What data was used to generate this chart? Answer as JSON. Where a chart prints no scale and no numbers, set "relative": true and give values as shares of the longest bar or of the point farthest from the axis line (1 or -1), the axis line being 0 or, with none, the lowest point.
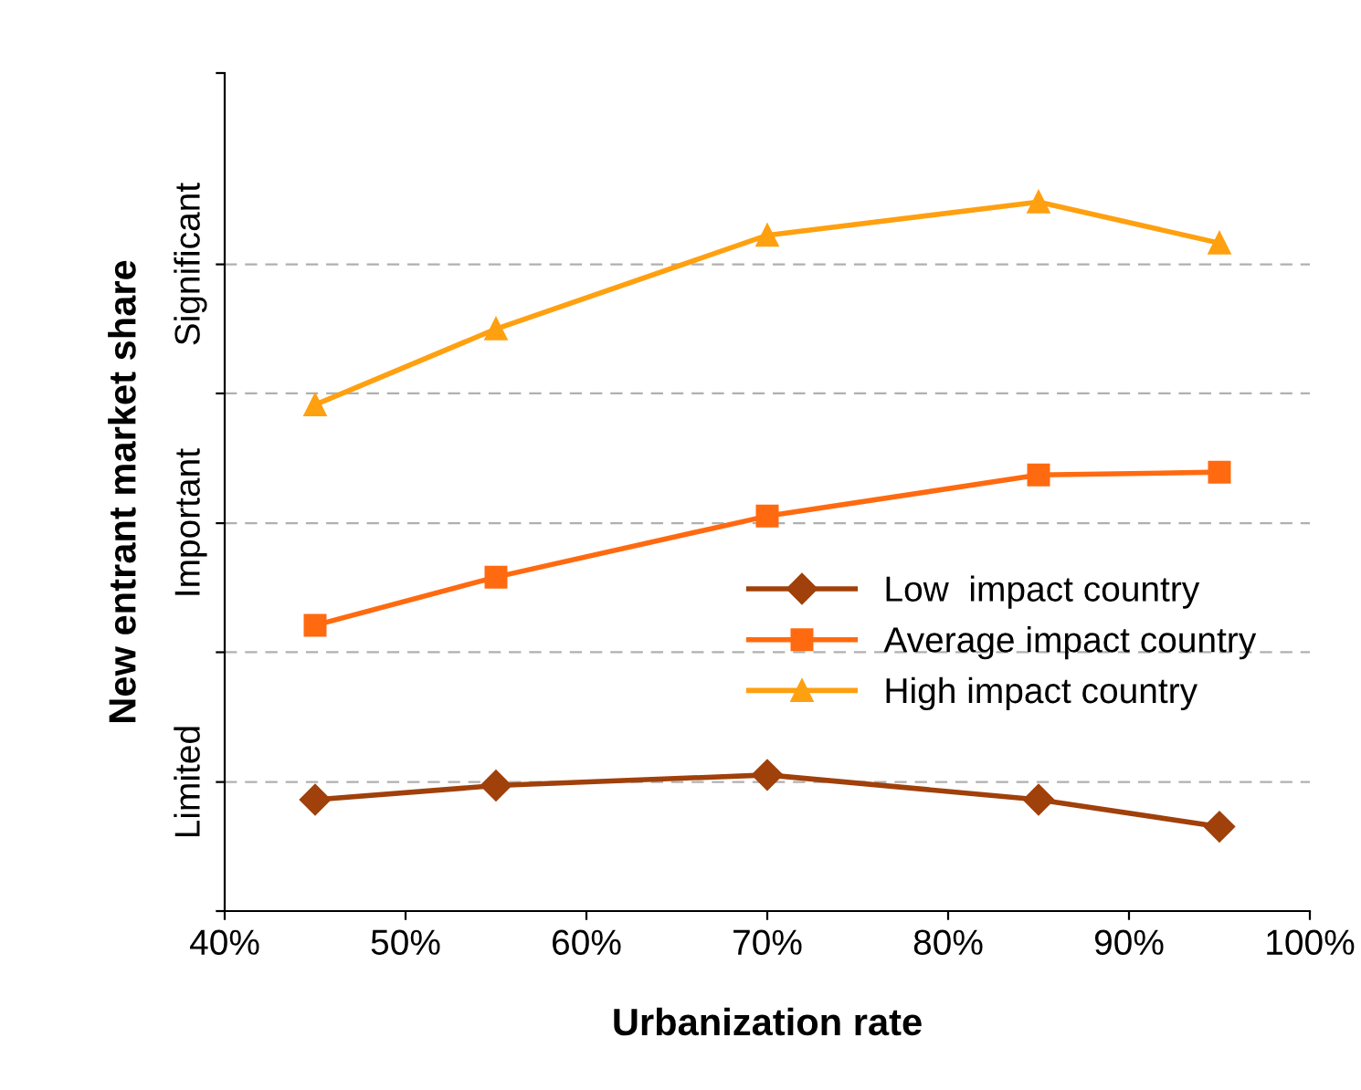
{
  "chart_data": {
    "type": "line",
    "relative": true,
    "xlabel": "Urbanization rate",
    "ylabel": "New entrant market share",
    "x": [
      45,
      55,
      70,
      85,
      95
    ],
    "series": [
      {
        "name": "Low  impact country",
        "color": "#a0400a",
        "marker": "diamond",
        "values": [
          0.157,
          0.177,
          0.192,
          0.157,
          0.119
        ]
      },
      {
        "name": "Average impact country",
        "color": "#ff6a10",
        "marker": "square",
        "values": [
          0.403,
          0.471,
          0.557,
          0.615,
          0.619
        ]
      },
      {
        "name": "High impact country",
        "color": "#ffa010",
        "marker": "triangle",
        "values": [
          0.714,
          0.821,
          0.953,
          1,
          0.942
        ]
      }
    ],
    "xlim": [
      40,
      100
    ],
    "xticks": [
      {
        "value": 40,
        "label": "40%"
      },
      {
        "value": 50,
        "label": "50%"
      },
      {
        "value": 60,
        "label": "60%"
      },
      {
        "value": 70,
        "label": "70%"
      },
      {
        "value": 80,
        "label": "80%"
      },
      {
        "value": 90,
        "label": "90%"
      },
      {
        "value": 100,
        "label": "100%"
      }
    ],
    "ref_lines": [
      {
        "axis": "y",
        "value": 0.182,
        "label": "Limited",
        "color": "#b0b0b0",
        "line_style": "dashed"
      },
      {
        "axis": "y",
        "value": 0.365,
        "label": null,
        "color": "#b0b0b0",
        "line_style": "dashed"
      },
      {
        "axis": "y",
        "value": 0.547,
        "label": "Important",
        "color": "#b0b0b0",
        "line_style": "dashed"
      },
      {
        "axis": "y",
        "value": 0.73,
        "label": null,
        "color": "#b0b0b0",
        "line_style": "dashed"
      },
      {
        "axis": "y",
        "value": 0.912,
        "label": "Significant",
        "color": "#b0b0b0",
        "line_style": "dashed"
      }
    ],
    "legend": "right",
    "line_style": "solid"
  }
}
